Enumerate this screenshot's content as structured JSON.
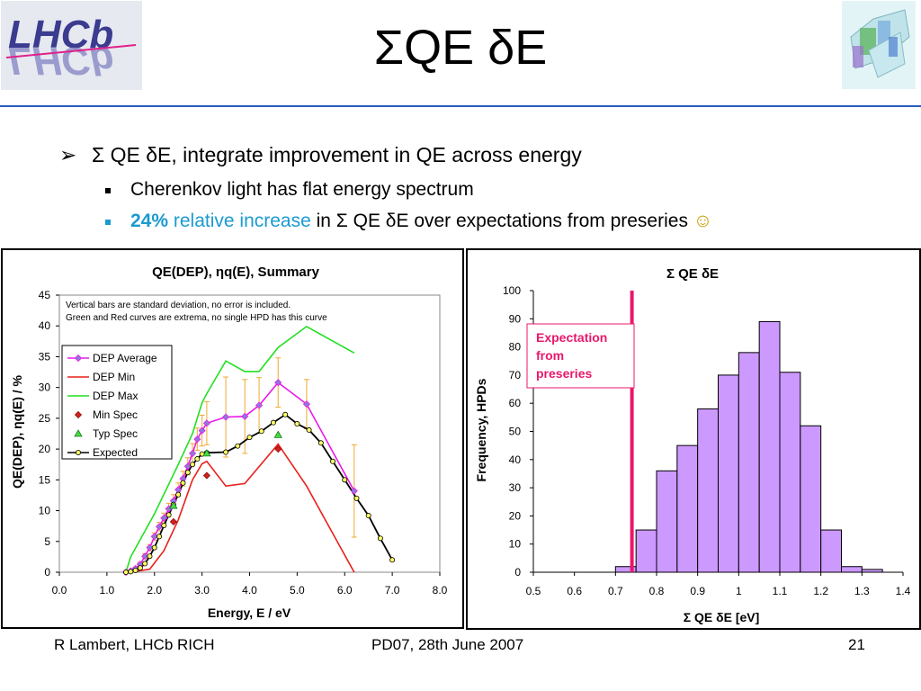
{
  "slide": {
    "title": "ΣQE δE",
    "bullet1": "Σ QE δE, integrate improvement in QE across energy",
    "sub1": "Cherenkov light has flat energy spectrum",
    "sub2_pct": "24%",
    "sub2_rel": "relative increase",
    "sub2_rest": " in Σ QE δE over expectations from preseries",
    "sub2_smiley": "☺",
    "accent_color": "#2a5bbf",
    "highlight_color": "#1b9ad0"
  },
  "footer": {
    "left": "R Lambert, LHCb RICH",
    "middle": "PD07, 28th June 2007",
    "right": "21"
  },
  "logo_text": "LHCb",
  "chart_data": [
    {
      "type": "line",
      "title": "QE(DEP), ηq(E), Summary",
      "xlabel": "Energy, E / eV",
      "ylabel": "QE(DEP), ηq(E) / %",
      "xlim": [
        0,
        8
      ],
      "ylim": [
        0,
        45
      ],
      "x_ticks": [
        "0.0",
        "1.0",
        "2.0",
        "3.0",
        "4.0",
        "5.0",
        "6.0",
        "7.0",
        "8.0"
      ],
      "y_ticks": [
        "0",
        "5",
        "10",
        "15",
        "20",
        "25",
        "30",
        "35",
        "40",
        "45"
      ],
      "annotation": [
        "Vertical bars are standard deviation, no error is included.",
        "Green and Red curves are extrema, no single HPD has this curve"
      ],
      "legend_position": "upper-left",
      "series": [
        {
          "name": "DEP Average",
          "color": "#e81be8",
          "marker": "diamond",
          "x": [
            1.4,
            1.5,
            1.6,
            1.7,
            1.8,
            1.9,
            2.0,
            2.1,
            2.2,
            2.3,
            2.4,
            2.5,
            2.6,
            2.7,
            2.8,
            2.9,
            3.0,
            3.1,
            3.5,
            3.9,
            4.2,
            4.6,
            5.2,
            6.2
          ],
          "y": [
            0,
            0.2,
            0.6,
            1.3,
            2.6,
            4.0,
            5.8,
            7.4,
            8.8,
            10.3,
            11.6,
            13.4,
            15.2,
            17.2,
            19.3,
            21.6,
            23.0,
            24.2,
            25.2,
            25.3,
            27.1,
            30.8,
            27.3,
            13.2
          ],
          "err": [
            0,
            0.1,
            0.2,
            0.3,
            0.4,
            0.5,
            0.6,
            0.7,
            0.8,
            0.9,
            1.0,
            1.1,
            1.2,
            1.4,
            1.6,
            1.8,
            2.5,
            3.5,
            6.5,
            6.0,
            4.5,
            4.0,
            4.0,
            7.5
          ]
        },
        {
          "name": "DEP Min",
          "color": "#e8211b",
          "x": [
            1.5,
            1.9,
            2.2,
            2.5,
            2.8,
            3.0,
            3.1,
            3.2,
            3.5,
            3.9,
            4.6,
            5.2,
            6.2
          ],
          "y": [
            0,
            0.5,
            3.5,
            8.5,
            15.0,
            17.6,
            18.0,
            17.0,
            14.0,
            14.4,
            20.8,
            14.0,
            0
          ]
        },
        {
          "name": "DEP Max",
          "color": "#22e022",
          "x": [
            1.4,
            1.5,
            2.0,
            2.5,
            2.8,
            3.0,
            3.1,
            3.5,
            3.9,
            4.2,
            4.6,
            5.2,
            6.2
          ],
          "y": [
            0,
            2.5,
            9.5,
            17.5,
            22.5,
            27.5,
            29.0,
            34.3,
            32.6,
            32.6,
            36.5,
            39.9,
            35.6
          ]
        },
        {
          "name": "Min Spec",
          "color": "#c8102e",
          "marker": "diamond",
          "x": [
            2.4,
            3.1,
            4.6
          ],
          "y": [
            8.2,
            15.7,
            20.0
          ]
        },
        {
          "name": "Typ Spec",
          "color": "#22c022",
          "marker": "triangle",
          "x": [
            2.4,
            3.1,
            4.6
          ],
          "y": [
            10.8,
            19.3,
            22.3
          ]
        },
        {
          "name": "Expected",
          "color": "#000000",
          "marker": "circle",
          "x": [
            1.4,
            1.5,
            1.6,
            1.7,
            1.8,
            1.9,
            2.0,
            2.1,
            2.2,
            2.3,
            2.4,
            2.5,
            2.6,
            2.7,
            2.8,
            2.9,
            3.0,
            3.1,
            3.5,
            3.75,
            4.0,
            4.25,
            4.5,
            4.75,
            5.0,
            5.25,
            5.5,
            5.75,
            6.0,
            6.25,
            6.5,
            6.75,
            7.0
          ],
          "y": [
            0,
            0.1,
            0.3,
            0.7,
            1.4,
            2.6,
            4.0,
            5.8,
            7.6,
            9.3,
            11.0,
            12.6,
            14.5,
            16.2,
            17.5,
            18.4,
            19.2,
            19.4,
            19.5,
            20.5,
            21.9,
            22.9,
            24.3,
            25.6,
            24.1,
            23.1,
            21.0,
            18.0,
            15.0,
            12.0,
            9.2,
            5.5,
            2.0
          ]
        }
      ]
    },
    {
      "type": "bar",
      "title": "Σ QE δE",
      "xlabel": "Σ QE δE  [eV]",
      "ylabel": "Frequency, HPDs",
      "xlim": [
        0.5,
        1.4
      ],
      "ylim": [
        0,
        100
      ],
      "x_ticks": [
        "0.5",
        "0.6",
        "0.7",
        "0.8",
        "0.9",
        "1",
        "1.1",
        "1.2",
        "1.3",
        "1.4"
      ],
      "y_ticks": [
        "0",
        "10",
        "20",
        "30",
        "40",
        "50",
        "60",
        "70",
        "80",
        "90",
        "100"
      ],
      "bin_width": 0.05,
      "bins": [
        0.7,
        0.75,
        0.8,
        0.85,
        0.9,
        0.95,
        1.0,
        1.05,
        1.1,
        1.15,
        1.2,
        1.25,
        1.3
      ],
      "values": [
        2,
        15,
        36,
        45,
        58,
        70,
        78,
        89,
        71,
        52,
        15,
        2,
        1
      ],
      "bar_color": "#cc99ff",
      "marker_line": {
        "x": 0.74,
        "color": "#e8186c",
        "label": "Expectation from preseries"
      }
    }
  ]
}
